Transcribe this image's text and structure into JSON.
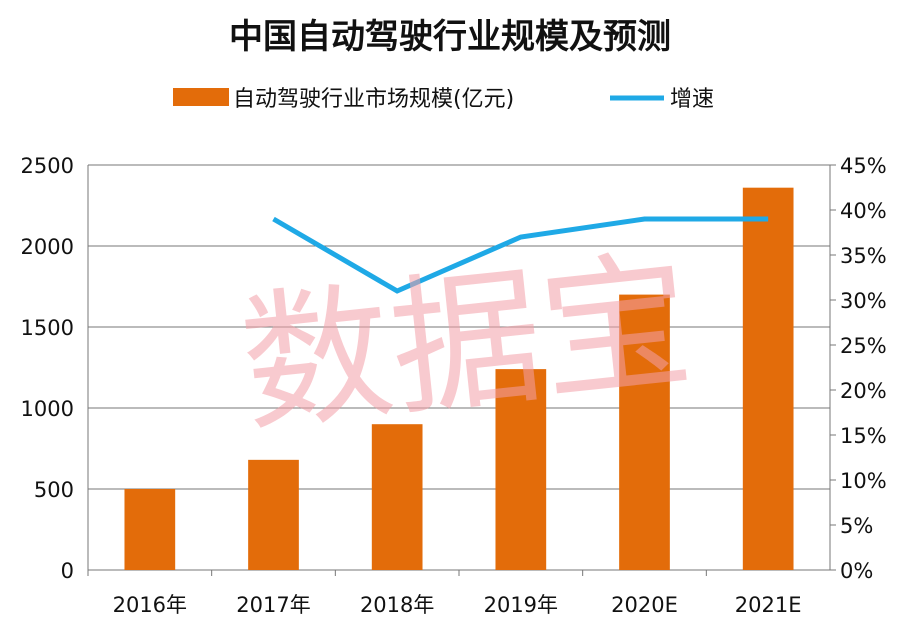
{
  "chart_data": {
    "type": "bar",
    "title": "中国自动驾驶行业规模及预测",
    "categories": [
      "2016年",
      "2017年",
      "2018年",
      "2019年",
      "2020E",
      "2021E"
    ],
    "series": [
      {
        "name": "自动驾驶行业市场规模(亿元)",
        "type": "bar",
        "axis": "left",
        "color": "#e36c0a",
        "values": [
          500,
          680,
          900,
          1240,
          1700,
          2360
        ]
      },
      {
        "name": "增速",
        "type": "line",
        "axis": "right",
        "color": "#1fa9e6",
        "values": [
          null,
          0.39,
          0.31,
          0.37,
          0.39,
          0.39
        ]
      }
    ],
    "y_left": {
      "min": 0,
      "max": 2500,
      "ticks": [
        "0",
        "500",
        "1000",
        "1500",
        "2000",
        "2500"
      ]
    },
    "y_right": {
      "min": 0,
      "max": 0.45,
      "ticks": [
        "0%",
        "5%",
        "10%",
        "15%",
        "20%",
        "25%",
        "30%",
        "35%",
        "40%",
        "45%"
      ]
    },
    "grid": true,
    "legend_position": "top"
  },
  "watermark": "数据宝"
}
